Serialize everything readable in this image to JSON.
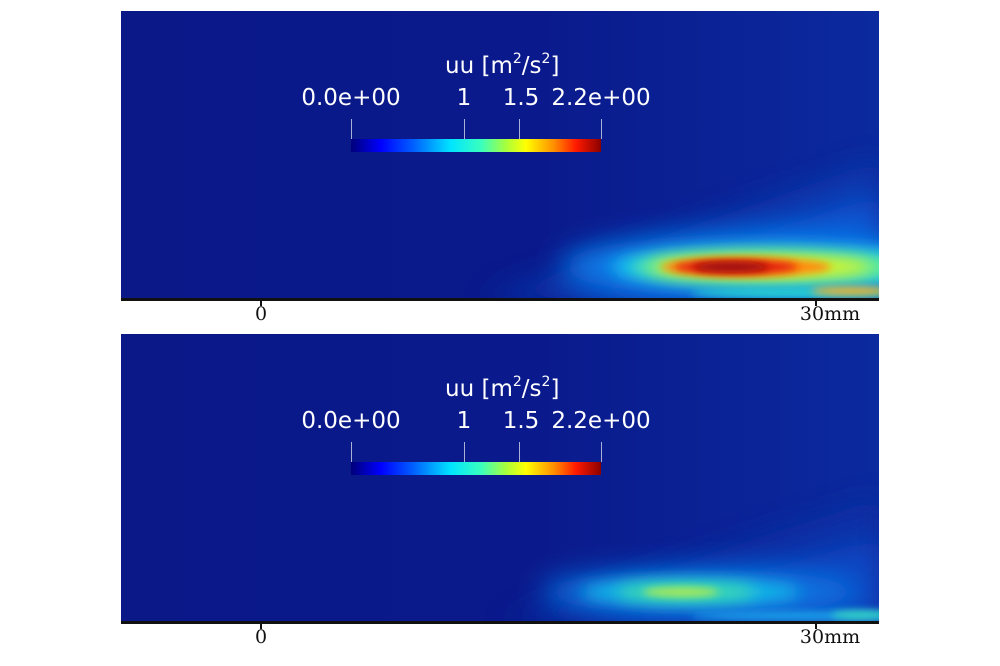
{
  "colors": {
    "background_field": "#0a1a8c",
    "colormap": [
      "#00007a",
      "#0000ff",
      "#0060ff",
      "#00e5ff",
      "#39ffbf",
      "#a8ff3c",
      "#ffff00",
      "#ff9000",
      "#ff1a00",
      "#8b0000"
    ]
  },
  "panels": [
    {
      "colorbar": {
        "variable": "uu",
        "unit_prefix": "[m",
        "unit_sup1": "2",
        "unit_mid": "/s",
        "unit_sup2": "2",
        "unit_suffix": "]",
        "labels": [
          "0.0e+00",
          "1",
          "1.5",
          "2.2e+00"
        ],
        "range": [
          0.0,
          2.2
        ]
      },
      "scale": {
        "start": "0",
        "end": "30mm"
      }
    },
    {
      "colorbar": {
        "variable": "uu",
        "unit_prefix": "[m",
        "unit_sup1": "2",
        "unit_mid": "/s",
        "unit_sup2": "2",
        "unit_suffix": "]",
        "labels": [
          "0.0e+00",
          "1",
          "1.5",
          "2.2e+00"
        ],
        "range": [
          0.0,
          2.2
        ]
      },
      "scale": {
        "start": "0",
        "end": "30mm"
      }
    }
  ]
}
